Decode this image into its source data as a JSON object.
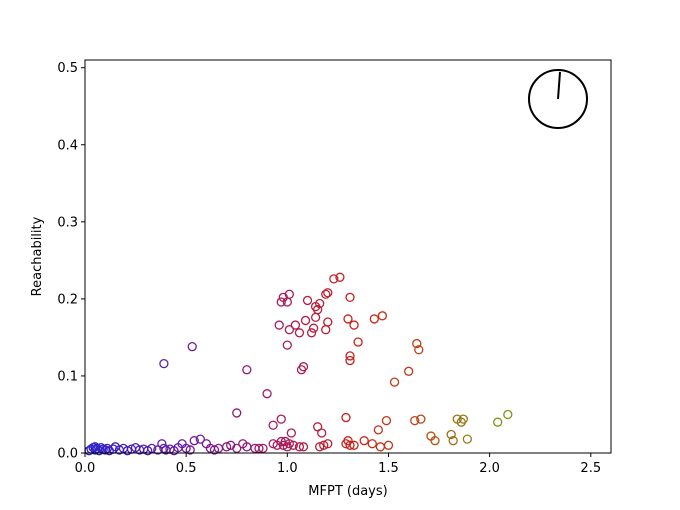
{
  "chart_data": {
    "type": "scatter",
    "xlabel": "MFPT (days)",
    "ylabel": "Reachability",
    "xlim": [
      0.0,
      2.6
    ],
    "ylim": [
      0.0,
      0.51
    ],
    "xticks": [
      0.0,
      0.5,
      1.0,
      1.5,
      2.0,
      2.5
    ],
    "xtick_labels": [
      "0.0",
      "0.5",
      "1.0",
      "1.5",
      "2.0",
      "2.5"
    ],
    "yticks": [
      0.0,
      0.1,
      0.2,
      0.3,
      0.4,
      0.5
    ],
    "ytick_labels": [
      "0.0",
      "0.1",
      "0.2",
      "0.3",
      "0.4",
      "0.5"
    ],
    "grid": false,
    "marker": "hollow-circle",
    "color_encoding": "marker edge color varies with MFPT: blue (low) through purple and red to olive (high)",
    "colors": {
      "low": "#2a20c8",
      "mid_low": "#6a1aa0",
      "mid": "#a01a6a",
      "mid_high": "#c8201a",
      "high": "#8c8c1a"
    },
    "inset": {
      "type": "clock-face",
      "hand_direction": "near 12 o'clock, slightly right"
    },
    "points": [
      [
        0.02,
        0.003
      ],
      [
        0.03,
        0.005
      ],
      [
        0.04,
        0.007
      ],
      [
        0.05,
        0.004
      ],
      [
        0.05,
        0.008
      ],
      [
        0.06,
        0.006
      ],
      [
        0.07,
        0.003
      ],
      [
        0.08,
        0.007
      ],
      [
        0.09,
        0.005
      ],
      [
        0.1,
        0.004
      ],
      [
        0.11,
        0.006
      ],
      [
        0.12,
        0.003
      ],
      [
        0.14,
        0.005
      ],
      [
        0.15,
        0.008
      ],
      [
        0.17,
        0.004
      ],
      [
        0.19,
        0.006
      ],
      [
        0.21,
        0.003
      ],
      [
        0.23,
        0.005
      ],
      [
        0.25,
        0.007
      ],
      [
        0.27,
        0.004
      ],
      [
        0.29,
        0.005
      ],
      [
        0.31,
        0.003
      ],
      [
        0.33,
        0.006
      ],
      [
        0.36,
        0.004
      ],
      [
        0.38,
        0.012
      ],
      [
        0.39,
        0.006
      ],
      [
        0.4,
        0.004
      ],
      [
        0.42,
        0.005
      ],
      [
        0.44,
        0.003
      ],
      [
        0.46,
        0.007
      ],
      [
        0.48,
        0.012
      ],
      [
        0.5,
        0.006
      ],
      [
        0.52,
        0.004
      ],
      [
        0.54,
        0.016
      ],
      [
        0.57,
        0.018
      ],
      [
        0.6,
        0.012
      ],
      [
        0.62,
        0.006
      ],
      [
        0.64,
        0.004
      ],
      [
        0.66,
        0.006
      ],
      [
        0.7,
        0.008
      ],
      [
        0.72,
        0.01
      ],
      [
        0.75,
        0.006
      ],
      [
        0.78,
        0.012
      ],
      [
        0.8,
        0.008
      ],
      [
        0.84,
        0.006
      ],
      [
        0.86,
        0.006
      ],
      [
        0.88,
        0.006
      ],
      [
        0.93,
        0.012
      ],
      [
        0.95,
        0.01
      ],
      [
        0.97,
        0.015
      ],
      [
        0.98,
        0.01
      ],
      [
        0.99,
        0.015
      ],
      [
        1.0,
        0.008
      ],
      [
        1.01,
        0.012
      ],
      [
        1.03,
        0.01
      ],
      [
        1.06,
        0.008
      ],
      [
        1.08,
        0.008
      ],
      [
        1.16,
        0.008
      ],
      [
        1.18,
        0.01
      ],
      [
        1.2,
        0.012
      ],
      [
        1.29,
        0.012
      ],
      [
        1.3,
        0.016
      ],
      [
        1.31,
        0.01
      ],
      [
        1.33,
        0.01
      ],
      [
        1.38,
        0.016
      ],
      [
        1.42,
        0.012
      ],
      [
        1.46,
        0.008
      ],
      [
        1.5,
        0.01
      ],
      [
        0.39,
        0.116
      ],
      [
        0.53,
        0.138
      ],
      [
        0.75,
        0.052
      ],
      [
        0.8,
        0.108
      ],
      [
        0.9,
        0.077
      ],
      [
        0.93,
        0.036
      ],
      [
        0.97,
        0.044
      ],
      [
        1.02,
        0.026
      ],
      [
        1.15,
        0.034
      ],
      [
        1.17,
        0.026
      ],
      [
        1.29,
        0.046
      ],
      [
        1.45,
        0.03
      ],
      [
        1.49,
        0.042
      ],
      [
        0.96,
        0.166
      ],
      [
        0.97,
        0.196
      ],
      [
        0.98,
        0.202
      ],
      [
        1.0,
        0.14
      ],
      [
        1.01,
        0.16
      ],
      [
        1.01,
        0.206
      ],
      [
        1.0,
        0.196
      ],
      [
        1.04,
        0.166
      ],
      [
        1.06,
        0.156
      ],
      [
        1.07,
        0.108
      ],
      [
        1.08,
        0.112
      ],
      [
        1.09,
        0.172
      ],
      [
        1.1,
        0.198
      ],
      [
        1.12,
        0.156
      ],
      [
        1.13,
        0.162
      ],
      [
        1.14,
        0.176
      ],
      [
        1.14,
        0.19
      ],
      [
        1.15,
        0.186
      ],
      [
        1.16,
        0.194
      ],
      [
        1.19,
        0.16
      ],
      [
        1.19,
        0.206
      ],
      [
        1.2,
        0.208
      ],
      [
        1.2,
        0.17
      ],
      [
        1.23,
        0.226
      ],
      [
        1.26,
        0.228
      ],
      [
        1.3,
        0.174
      ],
      [
        1.31,
        0.202
      ],
      [
        1.31,
        0.126
      ],
      [
        1.31,
        0.12
      ],
      [
        1.33,
        0.166
      ],
      [
        1.35,
        0.144
      ],
      [
        1.43,
        0.174
      ],
      [
        1.47,
        0.178
      ],
      [
        1.53,
        0.092
      ],
      [
        1.6,
        0.106
      ],
      [
        1.64,
        0.142
      ],
      [
        1.65,
        0.134
      ],
      [
        1.63,
        0.042
      ],
      [
        1.66,
        0.044
      ],
      [
        1.71,
        0.022
      ],
      [
        1.73,
        0.016
      ],
      [
        1.81,
        0.024
      ],
      [
        1.82,
        0.016
      ],
      [
        1.84,
        0.044
      ],
      [
        1.86,
        0.04
      ],
      [
        1.87,
        0.044
      ],
      [
        1.89,
        0.018
      ],
      [
        2.04,
        0.04
      ],
      [
        2.09,
        0.05
      ]
    ]
  }
}
